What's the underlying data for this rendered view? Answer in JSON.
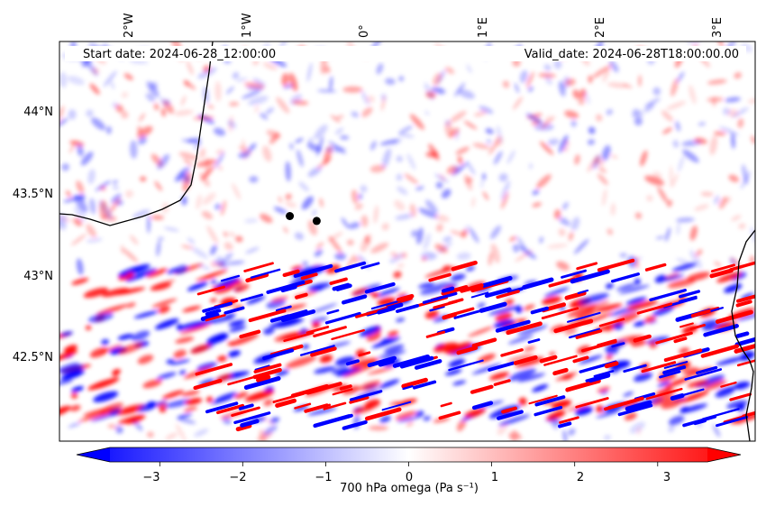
{
  "map": {
    "annotations": {
      "start": "Start date: 2024-06-28_12:00:00",
      "valid": "Valid_date: 2024-06-28T18:00:00.00"
    },
    "lon_ticks": [
      "2°W",
      "1°W",
      "0°",
      "1°E",
      "2°E",
      "3°E"
    ],
    "lat_ticks": [
      "44°N",
      "43.5°N",
      "43°N",
      "42.5°N"
    ],
    "extent": {
      "lon_min": -2.6,
      "lon_max": 3.35,
      "lat_min": 42.0,
      "lat_max": 44.45
    },
    "markers": [
      {
        "lon": -0.63,
        "lat": 43.38
      },
      {
        "lon": -0.4,
        "lat": 43.35
      }
    ],
    "field_colors": {
      "negative": "#0000ff",
      "zero": "#ffffff",
      "positive": "#ff0000"
    }
  },
  "colorbar": {
    "label": "700 hPa omega (Pa s⁻¹)",
    "tick_labels": [
      "−3",
      "−2",
      "−1",
      "0",
      "1",
      "2",
      "3"
    ],
    "range": [
      -3.6,
      3.6
    ]
  }
}
